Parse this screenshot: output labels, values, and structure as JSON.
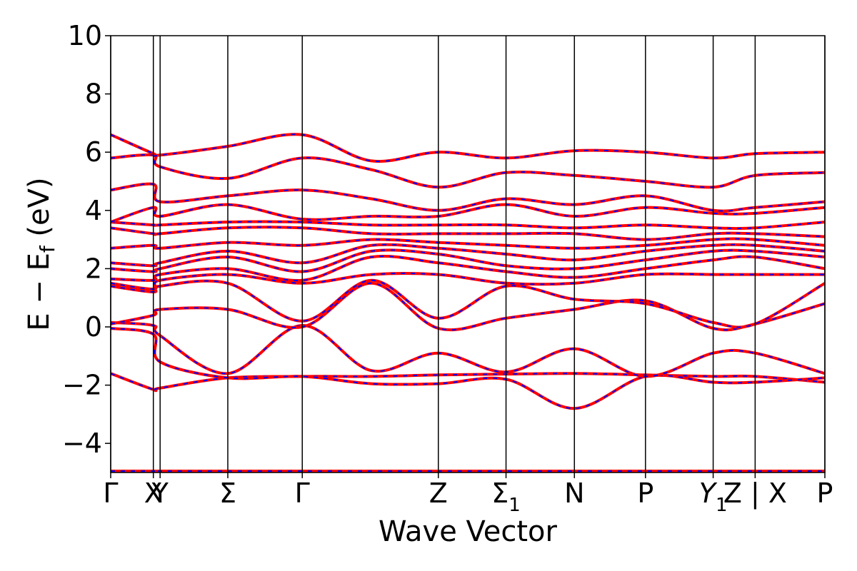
{
  "chart_data": {
    "type": "line",
    "xlabel": "Wave Vector",
    "ylabel": "E − E",
    "ylabel_sub": "f",
    "ylabel_unit": " (eV)",
    "ylim": [
      -5,
      10
    ],
    "yticks": [
      {
        "value": 10,
        "label": "10"
      },
      {
        "value": 8,
        "label": "8"
      },
      {
        "value": 6,
        "label": "6"
      },
      {
        "value": 4,
        "label": "4"
      },
      {
        "value": 2,
        "label": "2"
      },
      {
        "value": 0,
        "label": "0"
      },
      {
        "value": -2,
        "label": "−2"
      },
      {
        "value": -4,
        "label": "−4"
      }
    ],
    "xlim": [
      0,
      10.55
    ],
    "kpoints": [
      {
        "x": 0.0,
        "label": "Γ"
      },
      {
        "x": 0.63,
        "label": "X"
      },
      {
        "x": 0.73,
        "label": "Y"
      },
      {
        "x": 1.73,
        "label": "Σ"
      },
      {
        "x": 2.83,
        "label": "Γ"
      },
      {
        "x": 4.84,
        "label": "Z"
      },
      {
        "x": 5.84,
        "label": "Σ",
        "sub": "1"
      },
      {
        "x": 6.85,
        "label": "N"
      },
      {
        "x": 7.9,
        "label": "P"
      },
      {
        "x": 8.9,
        "label": "Y",
        "sub": "1",
        "italic": true
      },
      {
        "x": 9.52,
        "label": "Z | X"
      },
      {
        "x": 10.55,
        "label": "P"
      }
    ],
    "series_style": {
      "main": "#ff0000",
      "overlay": "#0000ff"
    },
    "bands": [
      [
        -1.6,
        -2.15,
        -2.1,
        -1.75,
        -1.7,
        -1.7,
        -1.65,
        -1.62,
        -1.6,
        -1.65,
        -1.7,
        -1.7,
        -1.9
      ],
      [
        -0.05,
        -0.25,
        -1.2,
        -1.75,
        -1.7,
        -1.95,
        -1.95,
        -1.8,
        -2.8,
        -1.7,
        -1.9,
        -1.9,
        -1.75
      ],
      [
        0.15,
        0.05,
        -0.3,
        -1.6,
        0.05,
        -1.5,
        -0.9,
        -1.55,
        -0.75,
        -1.7,
        -0.9,
        -0.9,
        -1.6
      ],
      [
        0.1,
        0.4,
        0.6,
        0.6,
        0.0,
        1.5,
        -0.05,
        0.3,
        0.6,
        0.9,
        -0.05,
        0.1,
        0.8
      ],
      [
        1.4,
        1.2,
        1.4,
        1.5,
        0.2,
        1.6,
        0.3,
        1.4,
        0.95,
        0.8,
        0.15,
        0.1,
        1.5
      ],
      [
        1.5,
        1.3,
        1.6,
        1.8,
        1.5,
        1.8,
        1.8,
        1.5,
        1.5,
        1.8,
        1.8,
        1.8,
        1.8
      ],
      [
        1.65,
        1.6,
        1.8,
        2.0,
        1.6,
        2.4,
        2.2,
        1.9,
        1.7,
        2.0,
        2.3,
        2.4,
        2.0
      ],
      [
        2.0,
        1.9,
        2.0,
        2.4,
        1.9,
        2.6,
        2.5,
        2.1,
        2.0,
        2.3,
        2.6,
        2.6,
        2.4
      ],
      [
        2.2,
        2.1,
        2.2,
        2.6,
        2.2,
        2.8,
        2.7,
        2.5,
        2.3,
        2.6,
        2.8,
        2.8,
        2.6
      ],
      [
        2.7,
        2.8,
        2.7,
        2.9,
        2.8,
        3.0,
        2.9,
        2.8,
        2.7,
        2.8,
        3.0,
        3.0,
        2.8
      ],
      [
        3.4,
        3.2,
        3.2,
        3.4,
        3.4,
        3.2,
        3.2,
        3.2,
        3.2,
        3.0,
        3.2,
        3.2,
        3.1
      ],
      [
        3.6,
        3.5,
        3.5,
        3.6,
        3.6,
        3.5,
        3.5,
        3.5,
        3.4,
        3.5,
        3.4,
        3.4,
        3.6
      ],
      [
        3.6,
        4.1,
        3.8,
        4.2,
        3.7,
        3.8,
        3.8,
        4.2,
        3.8,
        4.1,
        3.9,
        3.9,
        4.1
      ],
      [
        4.7,
        4.9,
        4.3,
        4.5,
        4.7,
        4.4,
        4.0,
        4.4,
        4.2,
        4.5,
        4.0,
        4.1,
        4.3
      ],
      [
        5.8,
        5.9,
        5.5,
        5.1,
        5.8,
        5.4,
        4.8,
        5.3,
        5.2,
        5.0,
        4.8,
        5.2,
        5.3
      ],
      [
        6.6,
        5.95,
        5.9,
        6.2,
        6.6,
        5.7,
        6.0,
        5.8,
        6.05,
        6.0,
        5.8,
        5.95,
        6.0
      ],
      [
        -4.95,
        -4.95,
        -4.95,
        -4.95,
        -4.95,
        -4.95,
        -4.95,
        -4.95,
        -4.95,
        -4.95,
        -4.95,
        -4.95,
        -4.95
      ]
    ],
    "band_x": [
      0.0,
      0.63,
      0.73,
      1.73,
      2.83,
      3.85,
      4.84,
      5.84,
      6.85,
      7.9,
      8.9,
      9.52,
      10.55
    ]
  }
}
